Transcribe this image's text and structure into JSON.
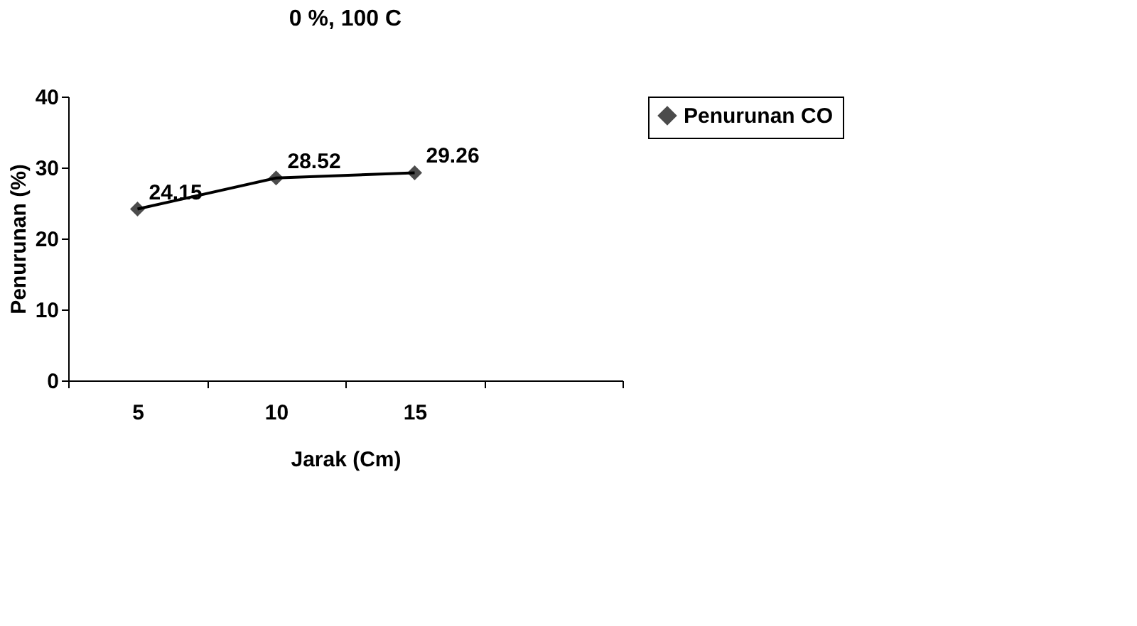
{
  "chart_data": {
    "type": "line",
    "title": "0 %, 100 C",
    "xlabel": "Jarak (Cm)",
    "ylabel": "Penurunan (%)",
    "categories": [
      "5",
      "10",
      "15",
      null
    ],
    "series": [
      {
        "name": "Penurunan CO",
        "color": "#000000",
        "values": [
          24.15,
          28.52,
          29.26,
          null
        ]
      }
    ],
    "ylim": [
      0,
      40
    ],
    "yticks": [
      0,
      10,
      20,
      30,
      40
    ],
    "grid": false,
    "legend": "right",
    "marker": "diamond",
    "line_style": "solid",
    "data_labels": true
  }
}
